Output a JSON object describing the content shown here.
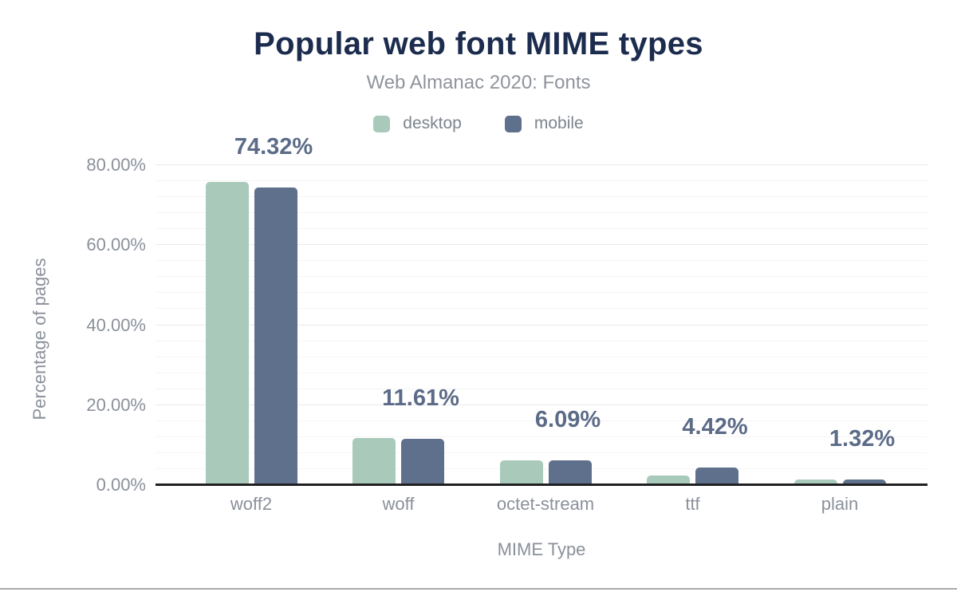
{
  "chart_data": {
    "type": "bar",
    "title": "Popular web font MIME types",
    "subtitle": "Web Almanac 2020: Fonts",
    "xlabel": "MIME Type",
    "ylabel": "Percentage of pages",
    "categories": [
      "woff2",
      "woff",
      "octet-stream",
      "ttf",
      "plain"
    ],
    "series": [
      {
        "name": "desktop",
        "color": "#a9cabb",
        "values": [
          75.9,
          11.7,
          6.15,
          2.4,
          1.4
        ]
      },
      {
        "name": "mobile",
        "color": "#5f708c",
        "values": [
          74.32,
          11.61,
          6.09,
          4.42,
          1.32
        ]
      }
    ],
    "desktop_values_estimated": true,
    "value_labels": [
      "74.32%",
      "11.61%",
      "6.09%",
      "4.42%",
      "1.32%"
    ],
    "value_labels_series": "mobile",
    "y_ticks": [
      {
        "label": "0.00%",
        "value": 0
      },
      {
        "label": "20.00%",
        "value": 20
      },
      {
        "label": "40.00%",
        "value": 40
      },
      {
        "label": "60.00%",
        "value": 60
      },
      {
        "label": "80.00%",
        "value": 80
      }
    ],
    "ylim": [
      0,
      88
    ],
    "grid": {
      "visible": true,
      "minor_step": 4,
      "major_step": 20
    },
    "legend_position": "top"
  },
  "colors": {
    "title": "#1c2c4e",
    "subtitle": "#8f949b",
    "legend_text": "#7e848e",
    "axis_text": "#8a909a",
    "value_label": "#5b6b88",
    "desktop": "#a9cabb",
    "mobile": "#5f708c",
    "axis_line": "#202022",
    "grid_major": "#e9e9e9",
    "grid_minor": "#f5f5f6",
    "bottom_rule": "#ababab"
  }
}
